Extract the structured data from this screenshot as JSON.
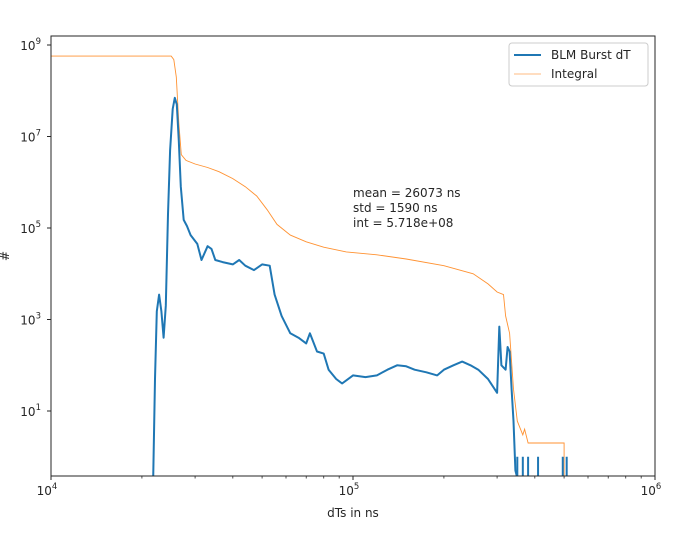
{
  "chart_data": {
    "type": "line",
    "title": "",
    "xlabel": "dTs in ns",
    "ylabel": "#",
    "xscale": "log",
    "yscale": "log",
    "xlim": [
      10000,
      1000000
    ],
    "ylim": [
      0.3,
      1500000000
    ],
    "grid": false,
    "legend_position": "upper right",
    "x_ticks": [
      {
        "base": "10",
        "exp": "4"
      },
      {
        "base": "10",
        "exp": "5"
      },
      {
        "base": "10",
        "exp": "6"
      }
    ],
    "y_ticks": [
      {
        "base": "10",
        "exp": "1"
      },
      {
        "base": "10",
        "exp": "3"
      },
      {
        "base": "10",
        "exp": "5"
      },
      {
        "base": "10",
        "exp": "7"
      },
      {
        "base": "10",
        "exp": "9"
      }
    ],
    "legend": [
      {
        "label": "BLM Burst dT",
        "color": "#1f77b4"
      },
      {
        "label": "Integral",
        "color": "#ff7f0e"
      }
    ],
    "annotation": {
      "lines": [
        "mean = 26073 ns",
        "std = 1590 ns",
        "int = 5.718e+08"
      ],
      "x": 100000,
      "y": 500000
    },
    "series": [
      {
        "name": "BLM Burst dT",
        "color": "#1f77b4",
        "points": [
          [
            21800,
            0.3
          ],
          [
            22100,
            50
          ],
          [
            22400,
            1500
          ],
          [
            22800,
            3500
          ],
          [
            23200,
            1500
          ],
          [
            23600,
            400
          ],
          [
            24000,
            2000
          ],
          [
            24400,
            200000
          ],
          [
            24800,
            5000000
          ],
          [
            25300,
            40000000
          ],
          [
            25700,
            70000000
          ],
          [
            26100,
            50000000
          ],
          [
            26500,
            8000000
          ],
          [
            26900,
            800000
          ],
          [
            27500,
            150000
          ],
          [
            28200,
            110000
          ],
          [
            29000,
            70000
          ],
          [
            30500,
            45000
          ],
          [
            31500,
            20000
          ],
          [
            33000,
            40000
          ],
          [
            34000,
            35000
          ],
          [
            35000,
            20000
          ],
          [
            37000,
            18000
          ],
          [
            40000,
            16000
          ],
          [
            42000,
            20000
          ],
          [
            44000,
            15000
          ],
          [
            47000,
            12000
          ],
          [
            50000,
            16000
          ],
          [
            53000,
            15000
          ],
          [
            55000,
            3500
          ],
          [
            58000,
            1200
          ],
          [
            62000,
            500
          ],
          [
            66000,
            400
          ],
          [
            70000,
            300
          ],
          [
            72000,
            500
          ],
          [
            76000,
            200
          ],
          [
            80000,
            180
          ],
          [
            83000,
            80
          ],
          [
            88000,
            50
          ],
          [
            92000,
            40
          ],
          [
            100000,
            60
          ],
          [
            110000,
            55
          ],
          [
            120000,
            60
          ],
          [
            130000,
            80
          ],
          [
            140000,
            100
          ],
          [
            150000,
            95
          ],
          [
            160000,
            80
          ],
          [
            175000,
            70
          ],
          [
            190000,
            60
          ],
          [
            200000,
            80
          ],
          [
            215000,
            100
          ],
          [
            230000,
            120
          ],
          [
            245000,
            100
          ],
          [
            260000,
            80
          ],
          [
            280000,
            50
          ],
          [
            300000,
            25
          ],
          [
            305000,
            700
          ],
          [
            310000,
            100
          ],
          [
            320000,
            80
          ],
          [
            325000,
            250
          ],
          [
            330000,
            200
          ],
          [
            335000,
            30
          ],
          [
            340000,
            6
          ],
          [
            345000,
            0.5
          ],
          [
            350000,
            0.3
          ]
        ],
        "tail_spikes_x": [
          350000,
          365000,
          380000,
          410000,
          495000,
          510000
        ],
        "tail_spike_value": 1
      },
      {
        "name": "Integral",
        "color": "#ff7f0e",
        "points": [
          [
            10000,
            571800000
          ],
          [
            25000,
            571800000
          ],
          [
            25500,
            480000000
          ],
          [
            26000,
            200000000
          ],
          [
            26500,
            20000000
          ],
          [
            27000,
            4000000
          ],
          [
            28000,
            3000000
          ],
          [
            30000,
            2500000
          ],
          [
            33000,
            2100000
          ],
          [
            36000,
            1700000
          ],
          [
            40000,
            1200000
          ],
          [
            44000,
            800000
          ],
          [
            48000,
            500000
          ],
          [
            52000,
            250000
          ],
          [
            56000,
            120000
          ],
          [
            62000,
            70000
          ],
          [
            70000,
            50000
          ],
          [
            80000,
            38000
          ],
          [
            95000,
            30000
          ],
          [
            120000,
            26000
          ],
          [
            150000,
            21000
          ],
          [
            200000,
            15000
          ],
          [
            250000,
            10000
          ],
          [
            280000,
            6000
          ],
          [
            300000,
            4000
          ],
          [
            315000,
            3500
          ],
          [
            320000,
            1200
          ],
          [
            330000,
            500
          ],
          [
            340000,
            30
          ],
          [
            350000,
            6
          ],
          [
            365000,
            3
          ],
          [
            370000,
            4
          ],
          [
            380000,
            2
          ],
          [
            410000,
            2
          ],
          [
            500000,
            2
          ],
          [
            500000,
            0.3
          ]
        ]
      }
    ]
  }
}
